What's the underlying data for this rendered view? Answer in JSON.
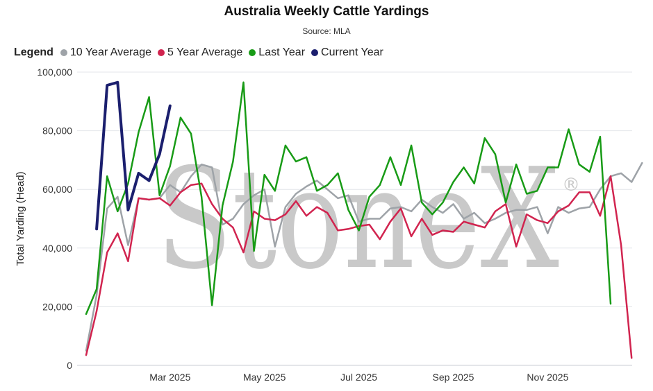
{
  "chart_data": {
    "type": "line",
    "title": "Australia Weekly Cattle Yardings",
    "subtitle": "Source: MLA",
    "legend_title": "Legend",
    "ylabel": "Total Yarding (Head)",
    "xlabel": "",
    "ylim": [
      0,
      100000
    ],
    "yticks": [
      0,
      20000,
      40000,
      60000,
      80000,
      100000
    ],
    "ytick_labels": [
      "0",
      "20,000",
      "40,000",
      "60,000",
      "80,000",
      "100,000"
    ],
    "xlim": [
      1,
      53
    ],
    "xticks": [
      {
        "week": 9,
        "label": "Mar 2025"
      },
      {
        "week": 18,
        "label": "May 2025"
      },
      {
        "week": 27,
        "label": "Jul 2025"
      },
      {
        "week": 36,
        "label": "Sep 2025"
      },
      {
        "week": 45,
        "label": "Nov 2025"
      }
    ],
    "grid": true,
    "legend_position": "top-left",
    "watermark": "StoneX",
    "series": [
      {
        "name": "10 Year Average",
        "color": "#9ea3a8",
        "start_week": 1,
        "values": [
          5000,
          24000,
          53500,
          57500,
          41000,
          57000,
          56500,
          57000,
          61500,
          59000,
          64500,
          68500,
          67500,
          48000,
          50000,
          55000,
          58000,
          60000,
          40500,
          54000,
          58500,
          61000,
          63000,
          60000,
          57000,
          58000,
          49000,
          50000,
          50000,
          53500,
          54000,
          52500,
          56500,
          54000,
          52000,
          55000,
          50000,
          52000,
          48500,
          50000,
          52000,
          53000,
          53000,
          54000,
          45000,
          54000,
          52000,
          53500,
          54000,
          60000,
          64500,
          65500,
          62500,
          69000
        ]
      },
      {
        "name": "5 Year Average",
        "color": "#d1244f",
        "start_week": 1,
        "values": [
          3500,
          18500,
          38500,
          45000,
          35500,
          57000,
          56500,
          57000,
          54500,
          59000,
          61500,
          62000,
          55000,
          50000,
          47000,
          38500,
          52500,
          50000,
          49500,
          51500,
          56000,
          51000,
          54000,
          52000,
          46000,
          46500,
          47500,
          48000,
          43000,
          49000,
          53500,
          44000,
          50000,
          44500,
          46000,
          45500,
          49000,
          48000,
          47000,
          52500,
          55000,
          40500,
          51500,
          49500,
          48500,
          52500,
          54500,
          59000,
          59000,
          51000,
          64500,
          41000,
          2500
        ]
      },
      {
        "name": "Last Year",
        "color": "#189b16",
        "start_week": 1,
        "values": [
          17500,
          26000,
          64500,
          52500,
          62000,
          79500,
          91500,
          58000,
          68000,
          84500,
          79000,
          57500,
          20500,
          54500,
          69500,
          96500,
          39000,
          65000,
          59500,
          75000,
          69500,
          71000,
          59500,
          61500,
          65500,
          53000,
          46000,
          57500,
          61500,
          71000,
          61500,
          75000,
          55500,
          51500,
          55500,
          62500,
          67500,
          62000,
          77500,
          72000,
          55500,
          68500,
          58500,
          59500,
          67500,
          67500,
          80500,
          68500,
          66000,
          78000,
          21000
        ]
      },
      {
        "name": "Current Year",
        "color": "#1b1f6e",
        "start_week": 2,
        "values": [
          46500,
          95500,
          96500,
          53000,
          65500,
          63000,
          72000,
          88500
        ]
      }
    ]
  }
}
